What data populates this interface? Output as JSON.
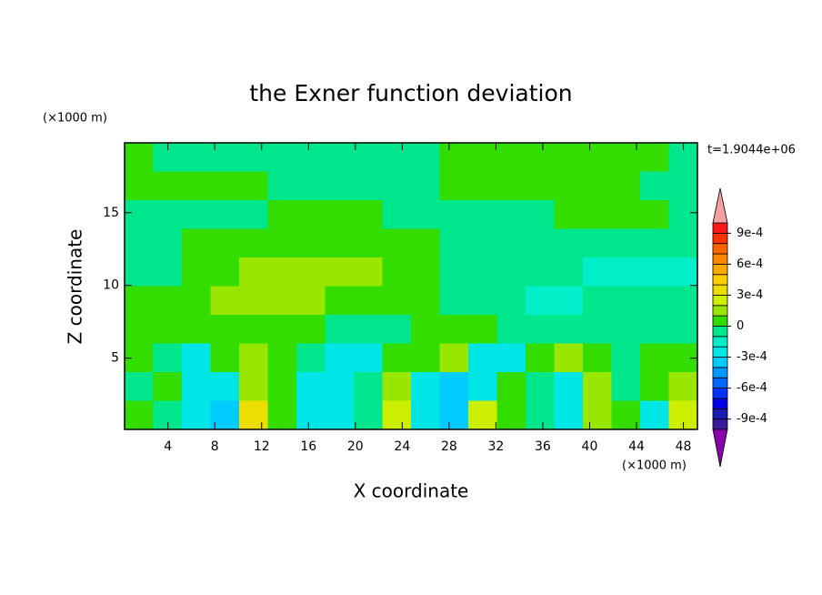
{
  "chart_data": {
    "type": "contour",
    "title": "the Exner function deviation",
    "xlabel": "X coordinate",
    "ylabel": "Z coordinate",
    "x_unit": "(×1000 m)",
    "y_unit": "(×1000 m)",
    "time_label": "t=1.9044e+06",
    "xlim": [
      0.3,
      49.2
    ],
    "ylim": [
      0.1,
      19.8
    ],
    "xticks": [
      4,
      8,
      12,
      16,
      20,
      24,
      28,
      32,
      36,
      40,
      44,
      48
    ],
    "yticks": [
      5,
      10,
      15
    ],
    "levels": [
      -0.001,
      -0.0009,
      -0.0008,
      -0.0007,
      -0.0006,
      -0.0005,
      -0.0004,
      -0.0003,
      -0.0002,
      -0.0001,
      0,
      0.0001,
      0.0002,
      0.0003,
      0.0004,
      0.0005,
      0.0006,
      0.0007,
      0.0008,
      0.0009,
      0.001
    ],
    "colors": [
      "#8800aa",
      "#3a1a9a",
      "#1a1ab3",
      "#0000e6",
      "#0033ff",
      "#0066ff",
      "#0099ff",
      "#00ccff",
      "#00e6e6",
      "#00eec8",
      "#00e68c",
      "#33dd00",
      "#99e600",
      "#ccee00",
      "#eedd00",
      "#ffcc00",
      "#ffaa00",
      "#ff8800",
      "#ff6600",
      "#ff3300",
      "#ff1a1a",
      "#f4a0a0"
    ],
    "colorbar_ticks": [
      {
        "value": 0.0009,
        "label": "9e-4"
      },
      {
        "value": 0.0006,
        "label": "6e-4"
      },
      {
        "value": 0.0003,
        "label": "3e-4"
      },
      0,
      {
        "value": -0.0003,
        "label": "-3e-4"
      },
      {
        "value": -0.0006,
        "label": "-6e-4"
      },
      {
        "value": -0.0009,
        "label": "-9e-4"
      }
    ],
    "z": [
      [
        5e-05,
        -5e-05,
        -5e-05,
        -5e-05,
        -5e-05,
        -5e-05,
        -5e-05,
        -5e-05,
        -5e-05,
        -5e-05,
        -5e-05,
        5e-05,
        5e-05,
        5e-05,
        5e-05,
        5e-05,
        5e-05,
        5e-05,
        5e-05,
        -5e-05
      ],
      [
        5e-05,
        5e-05,
        5e-05,
        5e-05,
        5e-05,
        -5e-05,
        -5e-05,
        -5e-05,
        -5e-05,
        -5e-05,
        -5e-05,
        5e-05,
        5e-05,
        5e-05,
        5e-05,
        5e-05,
        5e-05,
        5e-05,
        -5e-05,
        -5e-05
      ],
      [
        -5e-05,
        -5e-05,
        -5e-05,
        -5e-05,
        -5e-05,
        5e-05,
        5e-05,
        5e-05,
        5e-05,
        -5e-05,
        -5e-05,
        -5e-05,
        -5e-05,
        -5e-05,
        -5e-05,
        5e-05,
        5e-05,
        5e-05,
        5e-05,
        -5e-05
      ],
      [
        -5e-05,
        -5e-05,
        5e-05,
        5e-05,
        5e-05,
        5e-05,
        5e-05,
        5e-05,
        5e-05,
        5e-05,
        5e-05,
        -5e-05,
        -5e-05,
        -5e-05,
        -5e-05,
        -5e-05,
        -5e-05,
        -5e-05,
        -5e-05,
        -5e-05
      ],
      [
        -5e-05,
        -5e-05,
        5e-05,
        5e-05,
        0.00015,
        0.00015,
        0.00015,
        0.00015,
        0.00015,
        5e-05,
        5e-05,
        -5e-05,
        -5e-05,
        -5e-05,
        -5e-05,
        -5e-05,
        -0.00015,
        -0.00015,
        -0.00015,
        -0.00015
      ],
      [
        5e-05,
        5e-05,
        5e-05,
        0.00015,
        0.00015,
        0.00015,
        0.00015,
        5e-05,
        5e-05,
        5e-05,
        5e-05,
        -5e-05,
        -5e-05,
        -5e-05,
        -0.00015,
        -0.00015,
        -5e-05,
        -5e-05,
        -5e-05,
        -5e-05
      ],
      [
        5e-05,
        5e-05,
        5e-05,
        5e-05,
        5e-05,
        5e-05,
        5e-05,
        -5e-05,
        -5e-05,
        -5e-05,
        5e-05,
        5e-05,
        5e-05,
        -5e-05,
        -5e-05,
        -5e-05,
        -5e-05,
        -5e-05,
        -5e-05,
        -5e-05
      ],
      [
        5e-05,
        -5e-05,
        -0.00025,
        5e-05,
        0.00015,
        5e-05,
        -5e-05,
        -0.00025,
        -0.00025,
        5e-05,
        5e-05,
        0.00015,
        -0.00025,
        -0.00025,
        5e-05,
        0.00015,
        5e-05,
        -5e-05,
        5e-05,
        5e-05
      ],
      [
        -5e-05,
        5e-05,
        -0.00025,
        -0.00025,
        0.00015,
        5e-05,
        -0.00025,
        -0.00025,
        -5e-05,
        0.00015,
        -0.00025,
        -0.00035,
        -0.00025,
        5e-05,
        -5e-05,
        -0.00025,
        0.00015,
        -5e-05,
        5e-05,
        0.00015
      ],
      [
        5e-05,
        -5e-05,
        -0.00025,
        -0.00035,
        0.00035,
        5e-05,
        -0.00025,
        -0.00025,
        -5e-05,
        0.00025,
        -0.00025,
        -0.00035,
        0.00025,
        5e-05,
        -5e-05,
        -0.00025,
        0.00015,
        5e-05,
        -0.00025,
        0.00025
      ]
    ]
  }
}
